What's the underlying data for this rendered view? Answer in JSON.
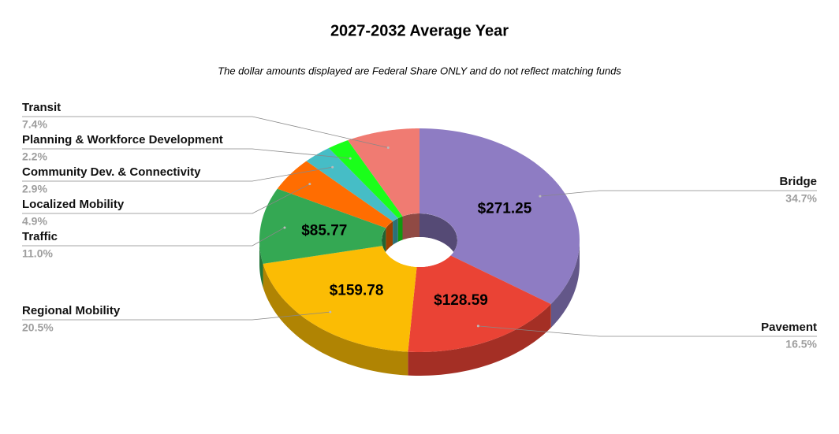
{
  "chart_data": {
    "type": "pie",
    "title": "2027-2032 Average Year",
    "subtitle": "The dollar amounts displayed are Federal Share ONLY and do not reflect matching funds",
    "categories": [
      "Bridge",
      "Pavement",
      "Regional Mobility",
      "Traffic",
      "Localized Mobility",
      "Community Dev. & Connectivity",
      "Planning & Workforce Development",
      "Transit"
    ],
    "values": [
      34.7,
      16.5,
      20.5,
      11.0,
      4.9,
      2.9,
      2.2,
      7.4
    ],
    "value_labels": [
      "34.7%",
      "16.5%",
      "20.5%",
      "11.0%",
      "4.9%",
      "2.9%",
      "2.2%",
      "7.4%"
    ],
    "dollar_labels": [
      "$271.25",
      "$128.59",
      "$159.78",
      "$85.77",
      null,
      null,
      null,
      null
    ],
    "colors": [
      "#8e7cc3",
      "#ea4335",
      "#fbbc04",
      "#34a853",
      "#ff6d01",
      "#46bdc6",
      "#1aff1a",
      "#f07b72"
    ]
  }
}
